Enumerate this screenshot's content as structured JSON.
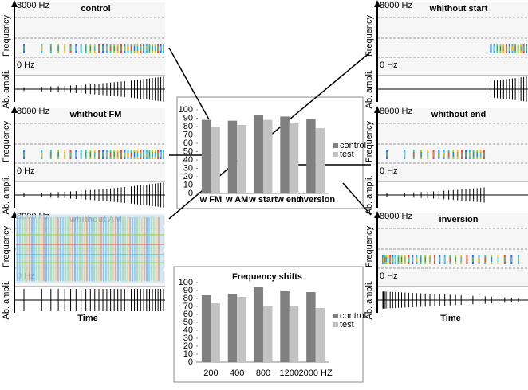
{
  "chart_data": [
    {
      "type": "bar",
      "categories": [
        "w FM",
        "w AM",
        "w start",
        "w end",
        "inversion"
      ],
      "series": [
        {
          "name": "control",
          "color": "#808080",
          "values": [
            88,
            87,
            94,
            92,
            89
          ]
        },
        {
          "name": "test",
          "color": "#c3c3c3",
          "values": [
            80,
            82,
            88,
            84,
            78
          ]
        }
      ],
      "ylim": [
        0,
        100
      ],
      "yticks": [
        0,
        10,
        20,
        30,
        40,
        50,
        60,
        70,
        80,
        90,
        100
      ],
      "legend": "right"
    },
    {
      "type": "bar",
      "title": "Frequency shifts",
      "categories": [
        "200",
        "400",
        "800",
        "1200",
        "2000 HZ"
      ],
      "series": [
        {
          "name": "control",
          "color": "#808080",
          "values": [
            84,
            86,
            94,
            90,
            88
          ]
        },
        {
          "name": "test",
          "color": "#c3c3c3",
          "values": [
            74,
            82,
            70,
            70,
            68
          ]
        }
      ],
      "ylim": [
        0,
        100
      ],
      "yticks": [
        0,
        10,
        20,
        30,
        40,
        50,
        60,
        70,
        80,
        90,
        100
      ],
      "legend": "right"
    }
  ],
  "panels": {
    "titles": [
      "control",
      "whithout FM",
      "whithout AM",
      "whithout start",
      "whithout end",
      "inversion"
    ],
    "freq_top": "8000 Hz",
    "freq_bottom": "0 Hz",
    "y_label": "Frequency",
    "amp_label": "Ab. ampli.",
    "x_label": "Time"
  }
}
